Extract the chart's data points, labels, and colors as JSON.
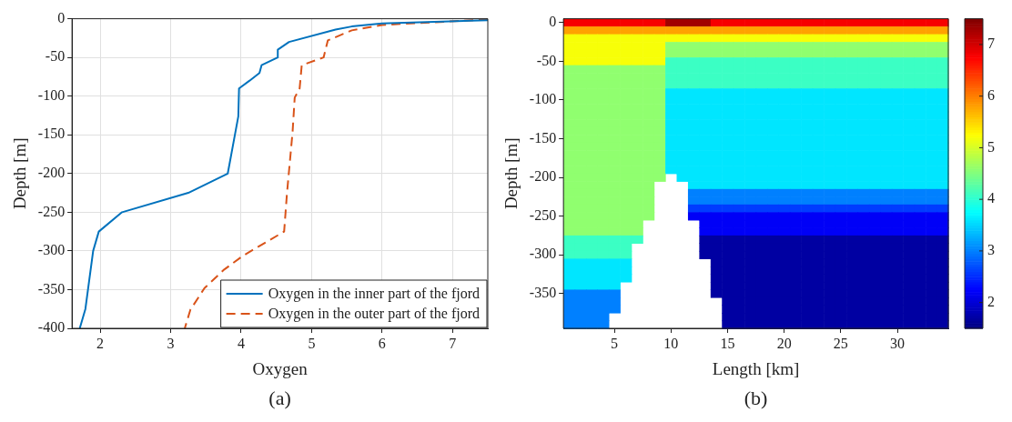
{
  "chart_data": [
    {
      "type": "line",
      "xlabel": "Oxygen",
      "ylabel": "Depth [m]",
      "annotations": [
        "(a)"
      ],
      "xlim": [
        1.6,
        7.5
      ],
      "xticks": [
        2,
        3,
        4,
        5,
        6,
        7
      ],
      "ylim": [
        -400,
        0
      ],
      "yticks": [
        -400,
        -350,
        -300,
        -250,
        -200,
        -150,
        -100,
        -50,
        0
      ],
      "grid": true,
      "legend": "bottom right",
      "series": [
        {
          "name": "Oxygen in the inner part of the fjord",
          "color": "#0072bd",
          "line_style": "solid",
          "x": [
            7.5,
            6.0,
            5.57,
            5.34,
            4.68,
            4.52,
            4.52,
            4.29,
            4.26,
            4.12,
            3.97,
            3.96,
            3.81,
            3.25,
            2.31,
            1.98,
            1.9,
            1.79,
            1.71
          ],
          "values": [
            -2,
            -6,
            -10,
            -14,
            -30,
            -40,
            -50,
            -60,
            -70,
            -80,
            -90,
            -126,
            -200,
            -225,
            -250,
            -275,
            -300,
            -375,
            -400
          ]
        },
        {
          "name": "Oxygen in the outer part of the fjord",
          "color": "#d95319",
          "line_style": "dashed",
          "x": [
            7.5,
            6.0,
            5.57,
            5.23,
            5.17,
            4.86,
            4.83,
            4.76,
            4.73,
            4.65,
            4.61,
            4.03,
            3.76,
            3.48,
            3.28,
            3.2
          ],
          "values": [
            -1,
            -8,
            -15,
            -28,
            -50,
            -60,
            -90,
            -102,
            -146,
            -226,
            -275,
            -306,
            -324,
            -348,
            -376,
            -400
          ]
        }
      ]
    },
    {
      "type": "heatmap",
      "xlabel": "Length [km]",
      "ylabel": "Depth [m]",
      "annotations": [
        "(b)"
      ],
      "clim": [
        1.5,
        7.5
      ],
      "cticks": [
        2,
        3,
        4,
        5,
        6,
        7
      ],
      "categories": [
        null,
        null,
        null,
        null,
        "5",
        null,
        null,
        null,
        null,
        "10",
        null,
        null,
        null,
        null,
        "15",
        null,
        null,
        null,
        null,
        "20",
        null,
        null,
        null,
        null,
        "25",
        null,
        null,
        null,
        null,
        "30",
        null,
        null,
        null,
        null
      ],
      "y_categories": [
        "0",
        null,
        null,
        null,
        null,
        "-50",
        null,
        null,
        null,
        null,
        "-100",
        null,
        null,
        null,
        null,
        "-150",
        null,
        null,
        null,
        null,
        "-200",
        null,
        null,
        null,
        null,
        "-250",
        null,
        null,
        null,
        null,
        "-300",
        null,
        null,
        null,
        null,
        "-350",
        null,
        null,
        null,
        null
      ],
      "cells": [
        [
          6.8,
          6.8,
          6.8,
          6.8,
          6.8,
          6.8,
          6.8,
          6.8,
          6.8,
          7.3,
          7.3,
          7.3,
          7.3,
          6.8,
          6.8,
          6.8,
          6.8,
          6.8,
          6.8,
          6.8,
          6.8,
          6.8,
          6.8,
          6.8,
          6.8,
          6.8,
          6.8,
          6.8,
          6.8,
          6.8,
          6.8,
          6.8,
          6.8,
          6.8
        ],
        [
          5.8,
          5.8,
          5.8,
          5.8,
          5.8,
          5.8,
          5.8,
          5.8,
          5.8,
          5.8,
          5.8,
          5.8,
          5.8,
          5.8,
          5.8,
          5.8,
          5.8,
          5.8,
          5.8,
          5.8,
          5.8,
          5.8,
          5.8,
          5.8,
          5.8,
          5.8,
          5.8,
          5.8,
          5.8,
          5.8,
          5.8,
          5.8,
          5.8,
          5.8
        ],
        [
          5.2,
          5.2,
          5.2,
          5.2,
          5.2,
          5.2,
          5.2,
          5.2,
          5.2,
          5.2,
          5.2,
          5.2,
          5.2,
          5.2,
          5.2,
          5.2,
          5.2,
          5.2,
          5.2,
          5.2,
          5.2,
          5.2,
          5.2,
          5.2,
          5.2,
          5.2,
          5.2,
          5.2,
          5.2,
          5.2,
          5.2,
          5.2,
          5.2,
          5.2
        ],
        [
          5.2,
          5.2,
          5.2,
          5.2,
          5.2,
          5.2,
          5.2,
          5.2,
          5.2,
          4.6,
          4.6,
          4.6,
          4.6,
          4.6,
          4.6,
          4.6,
          4.6,
          4.6,
          4.6,
          4.6,
          4.6,
          4.6,
          4.6,
          4.6,
          4.6,
          4.6,
          4.6,
          4.6,
          4.6,
          4.6,
          4.6,
          4.6,
          4.6,
          4.6
        ],
        [
          5.2,
          5.2,
          5.2,
          5.2,
          5.2,
          5.2,
          5.2,
          5.2,
          5.2,
          4.6,
          4.6,
          4.6,
          4.6,
          4.6,
          4.6,
          4.6,
          4.6,
          4.6,
          4.6,
          4.6,
          4.6,
          4.6,
          4.6,
          4.6,
          4.6,
          4.6,
          4.6,
          4.6,
          4.6,
          4.6,
          4.6,
          4.6,
          4.6,
          4.6
        ],
        [
          5.2,
          5.2,
          5.2,
          5.2,
          5.2,
          5.2,
          5.2,
          5.2,
          5.2,
          4.1,
          4.1,
          4.1,
          4.1,
          4.1,
          4.1,
          4.1,
          4.1,
          4.1,
          4.1,
          4.1,
          4.1,
          4.1,
          4.1,
          4.1,
          4.1,
          4.1,
          4.1,
          4.1,
          4.1,
          4.1,
          4.1,
          4.1,
          4.1,
          4.1
        ],
        [
          4.6,
          4.6,
          4.6,
          4.6,
          4.6,
          4.6,
          4.6,
          4.6,
          4.6,
          4.1,
          4.1,
          4.1,
          4.1,
          4.1,
          4.1,
          4.1,
          4.1,
          4.1,
          4.1,
          4.1,
          4.1,
          4.1,
          4.1,
          4.1,
          4.1,
          4.1,
          4.1,
          4.1,
          4.1,
          4.1,
          4.1,
          4.1,
          4.1,
          4.1
        ],
        [
          4.6,
          4.6,
          4.6,
          4.6,
          4.6,
          4.6,
          4.6,
          4.6,
          4.6,
          4.1,
          4.1,
          4.1,
          4.1,
          4.1,
          4.1,
          4.1,
          4.1,
          4.1,
          4.1,
          4.1,
          4.1,
          4.1,
          4.1,
          4.1,
          4.1,
          4.1,
          4.1,
          4.1,
          4.1,
          4.1,
          4.1,
          4.1,
          4.1,
          4.1
        ],
        [
          4.6,
          4.6,
          4.6,
          4.6,
          4.6,
          4.6,
          4.6,
          4.6,
          4.6,
          4.1,
          4.1,
          4.1,
          4.1,
          4.1,
          4.1,
          4.1,
          4.1,
          4.1,
          4.1,
          4.1,
          4.1,
          4.1,
          4.1,
          4.1,
          4.1,
          4.1,
          4.1,
          4.1,
          4.1,
          4.1,
          4.1,
          4.1,
          4.1,
          4.1
        ],
        [
          4.6,
          4.6,
          4.6,
          4.6,
          4.6,
          4.6,
          4.6,
          4.6,
          4.6,
          3.6,
          3.6,
          3.6,
          3.6,
          3.6,
          3.6,
          3.6,
          3.6,
          3.6,
          3.6,
          3.6,
          3.6,
          3.6,
          3.6,
          3.6,
          3.6,
          3.6,
          3.6,
          3.6,
          3.6,
          3.6,
          3.6,
          3.6,
          3.6,
          3.6
        ],
        [
          4.6,
          4.6,
          4.6,
          4.6,
          4.6,
          4.6,
          4.6,
          4.6,
          4.6,
          3.6,
          3.6,
          3.6,
          3.6,
          3.6,
          3.6,
          3.6,
          3.6,
          3.6,
          3.6,
          3.6,
          3.6,
          3.6,
          3.6,
          3.6,
          3.6,
          3.6,
          3.6,
          3.6,
          3.6,
          3.6,
          3.6,
          3.6,
          3.6,
          3.6
        ],
        [
          4.6,
          4.6,
          4.6,
          4.6,
          4.6,
          4.6,
          4.6,
          4.6,
          4.6,
          3.6,
          3.6,
          3.6,
          3.6,
          3.6,
          3.6,
          3.6,
          3.6,
          3.6,
          3.6,
          3.6,
          3.6,
          3.6,
          3.6,
          3.6,
          3.6,
          3.6,
          3.6,
          3.6,
          3.6,
          3.6,
          3.6,
          3.6,
          3.6,
          3.6
        ],
        [
          4.6,
          4.6,
          4.6,
          4.6,
          4.6,
          4.6,
          4.6,
          4.6,
          4.6,
          3.6,
          3.6,
          3.6,
          3.6,
          3.6,
          3.6,
          3.6,
          3.6,
          3.6,
          3.6,
          3.6,
          3.6,
          3.6,
          3.6,
          3.6,
          3.6,
          3.6,
          3.6,
          3.6,
          3.6,
          3.6,
          3.6,
          3.6,
          3.6,
          3.6
        ],
        [
          4.6,
          4.6,
          4.6,
          4.6,
          4.6,
          4.6,
          4.6,
          4.6,
          4.6,
          3.6,
          3.6,
          3.6,
          3.6,
          3.6,
          3.6,
          3.6,
          3.6,
          3.6,
          3.6,
          3.6,
          3.6,
          3.6,
          3.6,
          3.6,
          3.6,
          3.6,
          3.6,
          3.6,
          3.6,
          3.6,
          3.6,
          3.6,
          3.6,
          3.6
        ],
        [
          4.6,
          4.6,
          4.6,
          4.6,
          4.6,
          4.6,
          4.6,
          4.6,
          4.6,
          3.6,
          3.6,
          3.6,
          3.6,
          3.6,
          3.6,
          3.6,
          3.6,
          3.6,
          3.6,
          3.6,
          3.6,
          3.6,
          3.6,
          3.6,
          3.6,
          3.6,
          3.6,
          3.6,
          3.6,
          3.6,
          3.6,
          3.6,
          3.6,
          3.6
        ],
        [
          4.6,
          4.6,
          4.6,
          4.6,
          4.6,
          4.6,
          4.6,
          4.6,
          4.6,
          3.6,
          3.6,
          3.6,
          3.6,
          3.6,
          3.6,
          3.6,
          3.6,
          3.6,
          3.6,
          3.6,
          3.6,
          3.6,
          3.6,
          3.6,
          3.6,
          3.6,
          3.6,
          3.6,
          3.6,
          3.6,
          3.6,
          3.6,
          3.6,
          3.6
        ],
        [
          4.6,
          4.6,
          4.6,
          4.6,
          4.6,
          4.6,
          4.6,
          4.6,
          4.6,
          3.6,
          3.6,
          3.6,
          3.6,
          3.6,
          3.6,
          3.6,
          3.6,
          3.6,
          3.6,
          3.6,
          3.6,
          3.6,
          3.6,
          3.6,
          3.6,
          3.6,
          3.6,
          3.6,
          3.6,
          3.6,
          3.6,
          3.6,
          3.6,
          3.6
        ],
        [
          4.6,
          4.6,
          4.6,
          4.6,
          4.6,
          4.6,
          4.6,
          4.6,
          4.6,
          3.6,
          3.6,
          3.6,
          3.6,
          3.6,
          3.6,
          3.6,
          3.6,
          3.6,
          3.6,
          3.6,
          3.6,
          3.6,
          3.6,
          3.6,
          3.6,
          3.6,
          3.6,
          3.6,
          3.6,
          3.6,
          3.6,
          3.6,
          3.6,
          3.6
        ],
        [
          4.6,
          4.6,
          4.6,
          4.6,
          4.6,
          4.6,
          4.6,
          4.6,
          4.6,
          3.6,
          3.6,
          3.6,
          3.6,
          3.6,
          3.6,
          3.6,
          3.6,
          3.6,
          3.6,
          3.6,
          3.6,
          3.6,
          3.6,
          3.6,
          3.6,
          3.6,
          3.6,
          3.6,
          3.6,
          3.6,
          3.6,
          3.6,
          3.6,
          3.6
        ],
        [
          4.6,
          4.6,
          4.6,
          4.6,
          4.6,
          4.6,
          4.6,
          4.6,
          4.6,
          3.6,
          3.6,
          3.6,
          3.6,
          3.6,
          3.6,
          3.6,
          3.6,
          3.6,
          3.6,
          3.6,
          3.6,
          3.6,
          3.6,
          3.6,
          3.6,
          3.6,
          3.6,
          3.6,
          3.6,
          3.6,
          3.6,
          3.6,
          3.6,
          3.6
        ],
        [
          4.6,
          4.6,
          4.6,
          4.6,
          4.6,
          4.6,
          4.6,
          4.6,
          4.6,
          null,
          3.6,
          3.6,
          3.6,
          3.6,
          3.6,
          3.6,
          3.6,
          3.6,
          3.6,
          3.6,
          3.6,
          3.6,
          3.6,
          3.6,
          3.6,
          3.6,
          3.6,
          3.6,
          3.6,
          3.6,
          3.6,
          3.6,
          3.6,
          3.6
        ],
        [
          4.6,
          4.6,
          4.6,
          4.6,
          4.6,
          4.6,
          4.6,
          4.6,
          null,
          null,
          null,
          3.6,
          3.6,
          3.6,
          3.6,
          3.6,
          3.6,
          3.6,
          3.6,
          3.6,
          3.6,
          3.6,
          3.6,
          3.6,
          3.6,
          3.6,
          3.6,
          3.6,
          3.6,
          3.6,
          3.6,
          3.6,
          3.6,
          3.6
        ],
        [
          4.6,
          4.6,
          4.6,
          4.6,
          4.6,
          4.6,
          4.6,
          4.6,
          null,
          null,
          null,
          3.0,
          3.0,
          3.0,
          3.0,
          3.0,
          3.0,
          3.0,
          3.0,
          3.0,
          3.0,
          3.0,
          3.0,
          3.0,
          3.0,
          3.0,
          3.0,
          3.0,
          3.0,
          3.0,
          3.0,
          3.0,
          3.0,
          3.0
        ],
        [
          4.6,
          4.6,
          4.6,
          4.6,
          4.6,
          4.6,
          4.6,
          4.6,
          null,
          null,
          null,
          3.0,
          3.0,
          3.0,
          3.0,
          3.0,
          3.0,
          3.0,
          3.0,
          3.0,
          3.0,
          3.0,
          3.0,
          3.0,
          3.0,
          3.0,
          3.0,
          3.0,
          3.0,
          3.0,
          3.0,
          3.0,
          3.0,
          3.0
        ],
        [
          4.6,
          4.6,
          4.6,
          4.6,
          4.6,
          4.6,
          4.6,
          4.6,
          null,
          null,
          null,
          2.6,
          2.6,
          2.6,
          2.6,
          2.6,
          2.6,
          2.6,
          2.6,
          2.6,
          2.6,
          2.6,
          2.6,
          2.6,
          2.6,
          2.6,
          2.6,
          2.6,
          2.6,
          2.6,
          2.6,
          2.6,
          2.6,
          2.6
        ],
        [
          4.6,
          4.6,
          4.6,
          4.6,
          4.6,
          4.6,
          4.6,
          4.6,
          null,
          null,
          null,
          2.2,
          2.2,
          2.2,
          2.2,
          2.2,
          2.2,
          2.2,
          2.2,
          2.2,
          2.2,
          2.2,
          2.2,
          2.2,
          2.2,
          2.2,
          2.2,
          2.2,
          2.2,
          2.2,
          2.2,
          2.2,
          2.2,
          2.2
        ],
        [
          4.6,
          4.6,
          4.6,
          4.6,
          4.6,
          4.6,
          4.6,
          null,
          null,
          null,
          null,
          null,
          2.2,
          2.2,
          2.2,
          2.2,
          2.2,
          2.2,
          2.2,
          2.2,
          2.2,
          2.2,
          2.2,
          2.2,
          2.2,
          2.2,
          2.2,
          2.2,
          2.2,
          2.2,
          2.2,
          2.2,
          2.2,
          2.2
        ],
        [
          4.6,
          4.6,
          4.6,
          4.6,
          4.6,
          4.6,
          4.6,
          null,
          null,
          null,
          null,
          null,
          2.2,
          2.2,
          2.2,
          2.2,
          2.2,
          2.2,
          2.2,
          2.2,
          2.2,
          2.2,
          2.2,
          2.2,
          2.2,
          2.2,
          2.2,
          2.2,
          2.2,
          2.2,
          2.2,
          2.2,
          2.2,
          2.2
        ],
        [
          4.1,
          4.1,
          4.1,
          4.1,
          4.1,
          4.1,
          4.1,
          null,
          null,
          null,
          null,
          null,
          1.7,
          1.7,
          1.7,
          1.7,
          1.7,
          1.7,
          1.7,
          1.7,
          1.7,
          1.7,
          1.7,
          1.7,
          1.7,
          1.7,
          1.7,
          1.7,
          1.7,
          1.7,
          1.7,
          1.7,
          1.7,
          1.7
        ],
        [
          4.1,
          4.1,
          4.1,
          4.1,
          4.1,
          4.1,
          null,
          null,
          null,
          null,
          null,
          null,
          1.7,
          1.7,
          1.7,
          1.7,
          1.7,
          1.7,
          1.7,
          1.7,
          1.7,
          1.7,
          1.7,
          1.7,
          1.7,
          1.7,
          1.7,
          1.7,
          1.7,
          1.7,
          1.7,
          1.7,
          1.7,
          1.7
        ],
        [
          4.1,
          4.1,
          4.1,
          4.1,
          4.1,
          4.1,
          null,
          null,
          null,
          null,
          null,
          null,
          1.7,
          1.7,
          1.7,
          1.7,
          1.7,
          1.7,
          1.7,
          1.7,
          1.7,
          1.7,
          1.7,
          1.7,
          1.7,
          1.7,
          1.7,
          1.7,
          1.7,
          1.7,
          1.7,
          1.7,
          1.7,
          1.7
        ],
        [
          3.6,
          3.6,
          3.6,
          3.6,
          3.6,
          3.6,
          null,
          null,
          null,
          null,
          null,
          null,
          null,
          1.7,
          1.7,
          1.7,
          1.7,
          1.7,
          1.7,
          1.7,
          1.7,
          1.7,
          1.7,
          1.7,
          1.7,
          1.7,
          1.7,
          1.7,
          1.7,
          1.7,
          1.7,
          1.7,
          1.7,
          1.7
        ],
        [
          3.6,
          3.6,
          3.6,
          3.6,
          3.6,
          3.6,
          null,
          null,
          null,
          null,
          null,
          null,
          null,
          1.7,
          1.7,
          1.7,
          1.7,
          1.7,
          1.7,
          1.7,
          1.7,
          1.7,
          1.7,
          1.7,
          1.7,
          1.7,
          1.7,
          1.7,
          1.7,
          1.7,
          1.7,
          1.7,
          1.7,
          1.7
        ],
        [
          3.6,
          3.6,
          3.6,
          3.6,
          3.6,
          3.6,
          null,
          null,
          null,
          null,
          null,
          null,
          null,
          1.7,
          1.7,
          1.7,
          1.7,
          1.7,
          1.7,
          1.7,
          1.7,
          1.7,
          1.7,
          1.7,
          1.7,
          1.7,
          1.7,
          1.7,
          1.7,
          1.7,
          1.7,
          1.7,
          1.7,
          1.7
        ],
        [
          3.6,
          3.6,
          3.6,
          3.6,
          3.6,
          null,
          null,
          null,
          null,
          null,
          null,
          null,
          null,
          1.7,
          1.7,
          1.7,
          1.7,
          1.7,
          1.7,
          1.7,
          1.7,
          1.7,
          1.7,
          1.7,
          1.7,
          1.7,
          1.7,
          1.7,
          1.7,
          1.7,
          1.7,
          1.7,
          1.7,
          1.7
        ],
        [
          3.0,
          3.0,
          3.0,
          3.0,
          3.0,
          null,
          null,
          null,
          null,
          null,
          null,
          null,
          null,
          1.7,
          1.7,
          1.7,
          1.7,
          1.7,
          1.7,
          1.7,
          1.7,
          1.7,
          1.7,
          1.7,
          1.7,
          1.7,
          1.7,
          1.7,
          1.7,
          1.7,
          1.7,
          1.7,
          1.7,
          1.7
        ],
        [
          3.0,
          3.0,
          3.0,
          3.0,
          3.0,
          null,
          null,
          null,
          null,
          null,
          null,
          null,
          null,
          null,
          1.7,
          1.7,
          1.7,
          1.7,
          1.7,
          1.7,
          1.7,
          1.7,
          1.7,
          1.7,
          1.7,
          1.7,
          1.7,
          1.7,
          1.7,
          1.7,
          1.7,
          1.7,
          1.7,
          1.7
        ],
        [
          3.0,
          3.0,
          3.0,
          3.0,
          3.0,
          null,
          null,
          null,
          null,
          null,
          null,
          null,
          null,
          null,
          1.7,
          1.7,
          1.7,
          1.7,
          1.7,
          1.7,
          1.7,
          1.7,
          1.7,
          1.7,
          1.7,
          1.7,
          1.7,
          1.7,
          1.7,
          1.7,
          1.7,
          1.7,
          1.7,
          1.7
        ],
        [
          3.0,
          3.0,
          3.0,
          3.0,
          null,
          null,
          null,
          null,
          null,
          null,
          null,
          null,
          null,
          null,
          1.7,
          1.7,
          1.7,
          1.7,
          1.7,
          1.7,
          1.7,
          1.7,
          1.7,
          1.7,
          1.7,
          1.7,
          1.7,
          1.7,
          1.7,
          1.7,
          1.7,
          1.7,
          1.7,
          1.7
        ],
        [
          3.0,
          3.0,
          3.0,
          3.0,
          null,
          null,
          null,
          null,
          null,
          null,
          null,
          null,
          null,
          null,
          1.7,
          1.7,
          1.7,
          1.7,
          1.7,
          1.7,
          1.7,
          1.7,
          1.7,
          1.7,
          1.7,
          1.7,
          1.7,
          1.7,
          1.7,
          1.7,
          1.7,
          1.7,
          1.7,
          1.7
        ]
      ]
    }
  ]
}
